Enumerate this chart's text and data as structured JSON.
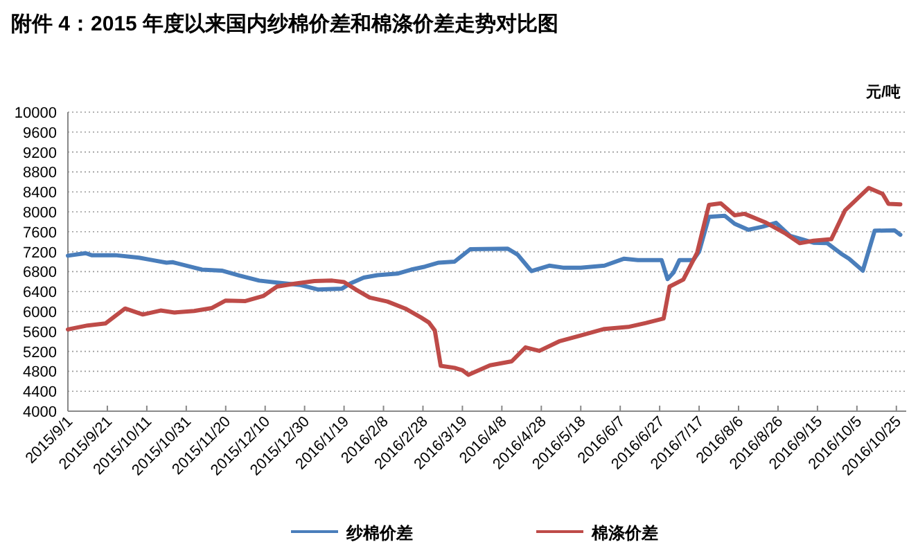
{
  "chart_data": {
    "type": "line",
    "title": "附件 4：2015 年度以来国内纱棉价差和棉涤价差走势对比图",
    "ylabel": "元/吨",
    "xlim": [
      "2015-09-01",
      "2016-10-30"
    ],
    "ylim": [
      4000,
      10000
    ],
    "yticks": [
      4000,
      4400,
      4800,
      5200,
      5600,
      6000,
      6400,
      6800,
      7200,
      7600,
      8000,
      8400,
      8800,
      9200,
      9600,
      10000
    ],
    "xticks": [
      {
        "value": "2015-09-01",
        "label": "2015/9/1"
      },
      {
        "value": "2015-09-21",
        "label": "2015/9/21"
      },
      {
        "value": "2015-10-11",
        "label": "2015/10/11"
      },
      {
        "value": "2015-10-31",
        "label": "2015/10/31"
      },
      {
        "value": "2015-11-20",
        "label": "2015/11/20"
      },
      {
        "value": "2015-12-10",
        "label": "2015/12/10"
      },
      {
        "value": "2015-12-30",
        "label": "2015/12/30"
      },
      {
        "value": "2016-01-19",
        "label": "2016/1/19"
      },
      {
        "value": "2016-02-08",
        "label": "2016/2/8"
      },
      {
        "value": "2016-02-28",
        "label": "2016/2/28"
      },
      {
        "value": "2016-03-19",
        "label": "2016/3/19"
      },
      {
        "value": "2016-04-08",
        "label": "2016/4/8"
      },
      {
        "value": "2016-04-28",
        "label": "2016/4/28"
      },
      {
        "value": "2016-05-18",
        "label": "2016/5/18"
      },
      {
        "value": "2016-06-07",
        "label": "2016/6/7"
      },
      {
        "value": "2016-06-27",
        "label": "2016/6/27"
      },
      {
        "value": "2016-07-17",
        "label": "2016/7/17"
      },
      {
        "value": "2016-08-06",
        "label": "2016/8/6"
      },
      {
        "value": "2016-08-26",
        "label": "2016/8/26"
      },
      {
        "value": "2016-09-15",
        "label": "2016/9/15"
      },
      {
        "value": "2016-10-05",
        "label": "2016/10/5"
      },
      {
        "value": "2016-10-25",
        "label": "2016/10/25"
      }
    ],
    "grid": "y",
    "legend": "bottom",
    "marker": "none",
    "line_style": "solid",
    "series": [
      {
        "name": "纱棉价差",
        "color": "#4a7ebb",
        "x": [
          "2015-09-01",
          "2015-09-10",
          "2015-09-13",
          "2015-09-25",
          "2015-10-07",
          "2015-10-14",
          "2015-10-21",
          "2015-10-24",
          "2015-11-04",
          "2015-11-08",
          "2015-11-18",
          "2015-11-27",
          "2015-12-07",
          "2015-12-16",
          "2015-12-28",
          "2016-01-06",
          "2016-01-18",
          "2016-01-22",
          "2016-01-29",
          "2016-02-05",
          "2016-02-15",
          "2016-02-22",
          "2016-02-29",
          "2016-03-07",
          "2016-03-15",
          "2016-03-23",
          "2016-04-11",
          "2016-04-16",
          "2016-04-23",
          "2016-05-02",
          "2016-05-09",
          "2016-05-18",
          "2016-05-30",
          "2016-06-09",
          "2016-06-16",
          "2016-06-28",
          "2016-07-01",
          "2016-07-04",
          "2016-07-07",
          "2016-07-14",
          "2016-07-17",
          "2016-07-22",
          "2016-07-30",
          "2016-08-04",
          "2016-08-11",
          "2016-08-18",
          "2016-08-25",
          "2016-09-01",
          "2016-09-08",
          "2016-09-13",
          "2016-09-20",
          "2016-09-27",
          "2016-10-01",
          "2016-10-08",
          "2016-10-14",
          "2016-10-24",
          "2016-10-27"
        ],
        "values": [
          7120,
          7170,
          7130,
          7130,
          7080,
          7030,
          6980,
          6990,
          6880,
          6840,
          6820,
          6720,
          6620,
          6580,
          6530,
          6440,
          6460,
          6560,
          6680,
          6730,
          6760,
          6840,
          6900,
          6980,
          7000,
          7250,
          7260,
          7140,
          6810,
          6920,
          6880,
          6880,
          6920,
          7060,
          7030,
          7030,
          6650,
          6780,
          7030,
          7030,
          7200,
          7900,
          7920,
          7760,
          7640,
          7700,
          7780,
          7520,
          7440,
          7380,
          7370,
          7160,
          7060,
          6820,
          7620,
          7630,
          7540
        ]
      },
      {
        "name": "棉涤价差",
        "color": "#be4b48",
        "x": [
          "2015-09-01",
          "2015-09-11",
          "2015-09-20",
          "2015-09-30",
          "2015-10-09",
          "2015-10-18",
          "2015-10-25",
          "2015-11-04",
          "2015-11-13",
          "2015-11-20",
          "2015-11-30",
          "2015-12-09",
          "2015-12-16",
          "2015-12-25",
          "2016-01-04",
          "2016-01-13",
          "2016-01-19",
          "2016-01-25",
          "2016-02-01",
          "2016-02-10",
          "2016-02-19",
          "2016-02-27",
          "2016-03-02",
          "2016-03-05",
          "2016-03-08",
          "2016-03-15",
          "2016-03-19",
          "2016-03-22",
          "2016-04-02",
          "2016-04-13",
          "2016-04-20",
          "2016-04-27",
          "2016-05-07",
          "2016-05-18",
          "2016-05-30",
          "2016-06-11",
          "2016-06-20",
          "2016-06-29",
          "2016-07-02",
          "2016-07-09",
          "2016-07-16",
          "2016-07-22",
          "2016-07-28",
          "2016-08-04",
          "2016-08-09",
          "2016-08-20",
          "2016-08-30",
          "2016-09-06",
          "2016-09-13",
          "2016-09-22",
          "2016-09-29",
          "2016-10-11",
          "2016-10-18",
          "2016-10-21",
          "2016-10-27"
        ],
        "values": [
          5640,
          5720,
          5760,
          6060,
          5940,
          6020,
          5980,
          6010,
          6070,
          6220,
          6210,
          6310,
          6500,
          6560,
          6610,
          6620,
          6590,
          6440,
          6280,
          6200,
          6060,
          5880,
          5780,
          5620,
          4910,
          4870,
          4820,
          4730,
          4920,
          5000,
          5280,
          5210,
          5400,
          5520,
          5650,
          5690,
          5770,
          5860,
          6500,
          6640,
          7180,
          8140,
          8170,
          7930,
          7960,
          7780,
          7560,
          7370,
          7420,
          7450,
          8030,
          8480,
          8360,
          8160,
          8150
        ]
      }
    ]
  }
}
